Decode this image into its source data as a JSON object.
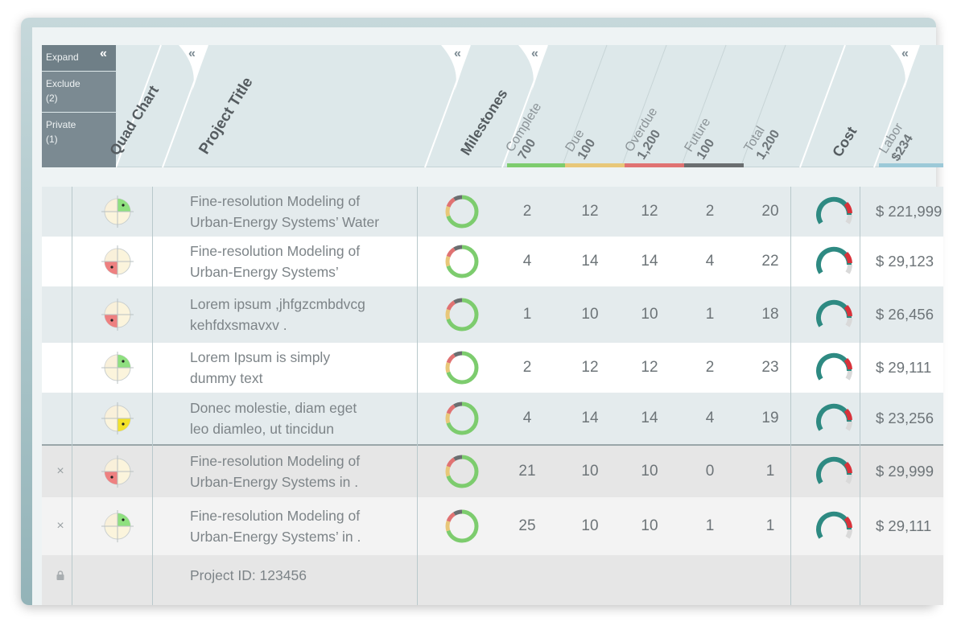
{
  "side_buttons": [
    {
      "label": "Expand",
      "count": ""
    },
    {
      "label": "Exclude",
      "count": "(2)"
    },
    {
      "label": "Private",
      "count": "(1)"
    }
  ],
  "collapse_glyph": "«",
  "headers": {
    "quad_chart": "Quad Chart",
    "project_title": "Project Title",
    "milestones": "Milestones",
    "complete": {
      "label": "Complete",
      "value": "700"
    },
    "due": {
      "label": "Due",
      "value": "100"
    },
    "overdue": {
      "label": "Overdue",
      "value": "1,200"
    },
    "future": {
      "label": "Future",
      "value": "100"
    },
    "total": {
      "label": "Total",
      "value": "1,200"
    },
    "cost": "Cost",
    "labor": {
      "label": "Labor",
      "value": "$234"
    }
  },
  "colors": {
    "complete": "#7dcc6e",
    "due": "#e8c779",
    "overdue": "#e07272",
    "future": "#6a6e70",
    "labor": "#9cc9d8",
    "gauge": "#2e8a82",
    "gauge_red": "#d8323a"
  },
  "rows": [
    {
      "status": "",
      "quad": "green-tr",
      "title1": "Fine-resolution Modeling of",
      "title2": "Urban-Energy Systems’ Water",
      "complete": "2",
      "due": "12",
      "overdue": "12",
      "future": "2",
      "total": "20",
      "cost": "$ 221,999",
      "bg": "#e4ebed"
    },
    {
      "status": "",
      "quad": "red-bl",
      "title1": "Fine-resolution Modeling of",
      "title2": "Urban-Energy Systems’",
      "complete": "4",
      "due": "14",
      "overdue": "14",
      "future": "4",
      "total": "22",
      "cost": "$ 29,123",
      "bg": "#ffffff"
    },
    {
      "status": "",
      "quad": "red-bl",
      "title1": "Lorem ipsum ,jhfgzcmbdvcg",
      "title2": "kehfdxsmavxv .",
      "complete": "1",
      "due": "10",
      "overdue": "10",
      "future": "1",
      "total": "18",
      "cost": "$ 26,456",
      "bg": "#e4ebed"
    },
    {
      "status": "",
      "quad": "green-tr",
      "title1": "Lorem Ipsum is simply",
      "title2": "dummy text",
      "complete": "2",
      "due": "12",
      "overdue": "12",
      "future": "2",
      "total": "23",
      "cost": "$ 29,111",
      "bg": "#ffffff"
    },
    {
      "status": "",
      "quad": "yellow-br",
      "title1": "Donec molestie, diam eget",
      "title2": "leo diamleo, ut tincidun",
      "complete": "4",
      "due": "14",
      "overdue": "14",
      "future": "4",
      "total": "19",
      "cost": "$ 23,256",
      "bg": "#e4ebed"
    },
    {
      "status": "×",
      "quad": "red-bl",
      "title1": "Fine-resolution Modeling of",
      "title2": "Urban-Energy Systems in .",
      "complete": "21",
      "due": "10",
      "overdue": "10",
      "future": "0",
      "total": "1",
      "cost": "$ 29,999",
      "bg": "#e6e6e6"
    },
    {
      "status": "×",
      "quad": "green-tr",
      "title1": "Fine-resolution Modeling of",
      "title2": "Urban-Energy Systems’ in .",
      "complete": "25",
      "due": "10",
      "overdue": "10",
      "future": "1",
      "total": "1",
      "cost": "$ 29,111",
      "bg": "#f3f3f3"
    }
  ],
  "private_row": {
    "text": "Project ID: 123456"
  }
}
